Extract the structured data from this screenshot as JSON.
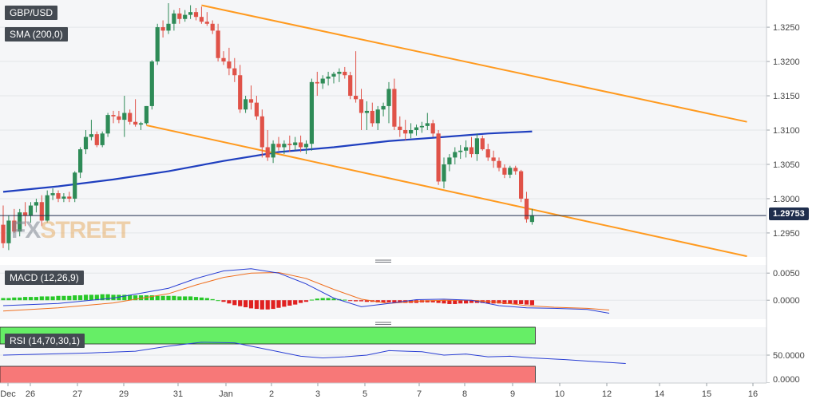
{
  "labels": {
    "symbol": "GBP/USD",
    "sma": "SMA (200,0)",
    "macd": "MACD (12,26,9)",
    "rsi": "RSI (14,70,30,1)",
    "last_price": "1.29753",
    "watermark_fx": "FX",
    "watermark_rest": "STREET"
  },
  "colors": {
    "bull": "#2e8b57",
    "bear": "#e05248",
    "sma": "#1f3fbf",
    "channel": "#ff9a1f",
    "macd_line": "#2a3fd4",
    "signal_line": "#f07020",
    "hist_pos": "#28c828",
    "hist_neg": "#e02020",
    "rsi_line": "#2a3fd4",
    "rsi_overbought": "#66ee66",
    "rsi_oversold": "#f77878"
  },
  "chart_data": [
    {
      "type": "candlestick",
      "title": "GBP/USD",
      "ylim": [
        1.2915,
        1.3285
      ],
      "y_ticks": [
        "1.3250",
        "1.3200",
        "1.3150",
        "1.3100",
        "1.3050",
        "1.3000",
        "1.2950"
      ],
      "x_ticks": [
        "Dec",
        "26",
        "27",
        "29",
        "31",
        "Jan",
        "2",
        "3",
        "5",
        "7",
        "8",
        "9",
        "10",
        "12",
        "14",
        "15",
        "16"
      ],
      "last_price": 1.29753,
      "candles": [
        [
          1.2962,
          1.299,
          1.2928,
          1.2935
        ],
        [
          1.2935,
          1.2975,
          1.2925,
          1.2968
        ],
        [
          1.2968,
          1.2985,
          1.295,
          1.2952
        ],
        [
          1.2952,
          1.2985,
          1.2945,
          1.298
        ],
        [
          1.298,
          1.2995,
          1.296,
          1.2975
        ],
        [
          1.2975,
          1.2995,
          1.2965,
          1.299
        ],
        [
          1.299,
          1.3,
          1.298,
          1.2995
        ],
        [
          1.2995,
          1.3005,
          1.296,
          1.2968
        ],
        [
          1.2968,
          1.3012,
          1.2965,
          1.3005
        ],
        [
          1.3005,
          1.3015,
          1.2998,
          1.3008
        ],
        [
          1.3008,
          1.3012,
          1.2995,
          1.3
        ],
        [
          1.3,
          1.3008,
          1.2995,
          1.3003
        ],
        [
          1.3003,
          1.301,
          1.2995,
          1.3
        ],
        [
          1.3,
          1.304,
          1.2995,
          1.3038
        ],
        [
          1.3038,
          1.3075,
          1.303,
          1.3072
        ],
        [
          1.3072,
          1.31,
          1.3065,
          1.309
        ],
        [
          1.309,
          1.3115,
          1.3085,
          1.3094
        ],
        [
          1.3094,
          1.3098,
          1.3075,
          1.3078
        ],
        [
          1.3078,
          1.3098,
          1.3075,
          1.3095
        ],
        [
          1.3095,
          1.3125,
          1.309,
          1.3122
        ],
        [
          1.3122,
          1.3128,
          1.311,
          1.312
        ],
        [
          1.312,
          1.3128,
          1.311,
          1.3115
        ],
        [
          1.3115,
          1.315,
          1.309,
          1.3125
        ],
        [
          1.3125,
          1.313,
          1.3108,
          1.3112
        ],
        [
          1.3112,
          1.3145,
          1.3105,
          1.3108
        ],
        [
          1.3108,
          1.3112,
          1.31,
          1.311
        ],
        [
          1.311,
          1.3135,
          1.3108,
          1.3135
        ],
        [
          1.3135,
          1.3202,
          1.313,
          1.32
        ],
        [
          1.32,
          1.3255,
          1.3195,
          1.325
        ],
        [
          1.325,
          1.326,
          1.3235,
          1.3245
        ],
        [
          1.3245,
          1.3285,
          1.324,
          1.3255
        ],
        [
          1.3255,
          1.3275,
          1.3245,
          1.327
        ],
        [
          1.327,
          1.3278,
          1.3255,
          1.3262
        ],
        [
          1.3262,
          1.3275,
          1.3258,
          1.3268
        ],
        [
          1.3268,
          1.3282,
          1.3262,
          1.3272
        ],
        [
          1.3272,
          1.3278,
          1.326,
          1.3265
        ],
        [
          1.3265,
          1.328,
          1.3255,
          1.3258
        ],
        [
          1.3258,
          1.3272,
          1.3252,
          1.3255
        ],
        [
          1.3255,
          1.326,
          1.324,
          1.3245
        ],
        [
          1.3245,
          1.3255,
          1.32,
          1.3205
        ],
        [
          1.3205,
          1.3215,
          1.3195,
          1.32
        ],
        [
          1.32,
          1.322,
          1.318,
          1.319
        ],
        [
          1.319,
          1.3205,
          1.317,
          1.318
        ],
        [
          1.318,
          1.3195,
          1.3125,
          1.313
        ],
        [
          1.313,
          1.315,
          1.3125,
          1.3145
        ],
        [
          1.3145,
          1.3165,
          1.313,
          1.314
        ],
        [
          1.314,
          1.315,
          1.3115,
          1.312
        ],
        [
          1.312,
          1.313,
          1.306,
          1.3075
        ],
        [
          1.3075,
          1.31,
          1.3055,
          1.306
        ],
        [
          1.306,
          1.3085,
          1.3052,
          1.308
        ],
        [
          1.308,
          1.309,
          1.307,
          1.3075
        ],
        [
          1.3075,
          1.3085,
          1.3065,
          1.308
        ],
        [
          1.308,
          1.3092,
          1.3068,
          1.3078
        ],
        [
          1.3078,
          1.309,
          1.307,
          1.3082
        ],
        [
          1.3082,
          1.3092,
          1.3068,
          1.3075
        ],
        [
          1.3075,
          1.3085,
          1.3065,
          1.308
        ],
        [
          1.308,
          1.3175,
          1.307,
          1.317
        ],
        [
          1.317,
          1.3185,
          1.315,
          1.3168
        ],
        [
          1.3168,
          1.318,
          1.316,
          1.3175
        ],
        [
          1.3175,
          1.3185,
          1.3165,
          1.3178
        ],
        [
          1.3178,
          1.3185,
          1.3168,
          1.3182
        ],
        [
          1.3182,
          1.319,
          1.317,
          1.3185
        ],
        [
          1.3185,
          1.3192,
          1.3175,
          1.318
        ],
        [
          1.318,
          1.3185,
          1.3145,
          1.315
        ],
        [
          1.315,
          1.3215,
          1.314,
          1.3145
        ],
        [
          1.3145,
          1.316,
          1.31,
          1.3125
        ],
        [
          1.3125,
          1.3142,
          1.31,
          1.3128
        ],
        [
          1.3128,
          1.314,
          1.3105,
          1.311
        ],
        [
          1.311,
          1.3135,
          1.31,
          1.313
        ],
        [
          1.313,
          1.314,
          1.312,
          1.3135
        ],
        [
          1.3135,
          1.317,
          1.311,
          1.316
        ],
        [
          1.316,
          1.3175,
          1.31,
          1.3105
        ],
        [
          1.3105,
          1.312,
          1.309,
          1.31
        ],
        [
          1.31,
          1.3115,
          1.3085,
          1.3095
        ],
        [
          1.3095,
          1.311,
          1.3088,
          1.31
        ],
        [
          1.31,
          1.3108,
          1.3092,
          1.3104
        ],
        [
          1.3104,
          1.3112,
          1.3096,
          1.3106
        ],
        [
          1.3106,
          1.3125,
          1.31,
          1.311
        ],
        [
          1.311,
          1.3115,
          1.309,
          1.3095
        ],
        [
          1.3095,
          1.31,
          1.302,
          1.3025
        ],
        [
          1.3025,
          1.306,
          1.3015,
          1.305
        ],
        [
          1.305,
          1.3065,
          1.304,
          1.306
        ],
        [
          1.306,
          1.3075,
          1.305,
          1.3068
        ],
        [
          1.3068,
          1.3078,
          1.3058,
          1.307
        ],
        [
          1.307,
          1.3085,
          1.306,
          1.3075
        ],
        [
          1.3075,
          1.309,
          1.306,
          1.3065
        ],
        [
          1.3065,
          1.3095,
          1.3055,
          1.3088
        ],
        [
          1.3088,
          1.3092,
          1.307,
          1.3072
        ],
        [
          1.3072,
          1.308,
          1.3055,
          1.306
        ],
        [
          1.306,
          1.307,
          1.3045,
          1.3055
        ],
        [
          1.3055,
          1.306,
          1.304,
          1.3045
        ],
        [
          1.3045,
          1.305,
          1.303,
          1.3035
        ],
        [
          1.3035,
          1.3048,
          1.303,
          1.3045
        ],
        [
          1.3045,
          1.3048,
          1.3035,
          1.304
        ],
        [
          1.304,
          1.3042,
          1.2995,
          1.3
        ],
        [
          1.3,
          1.301,
          1.2965,
          1.297
        ],
        [
          1.2966,
          1.2985,
          1.2962,
          1.2975
        ]
      ],
      "sma_200": [
        [
          0,
          1.301
        ],
        [
          10,
          1.3018
        ],
        [
          20,
          1.3028
        ],
        [
          30,
          1.304
        ],
        [
          40,
          1.3055
        ],
        [
          50,
          1.3068
        ],
        [
          60,
          1.3075
        ],
        [
          70,
          1.3084
        ],
        [
          80,
          1.309
        ],
        [
          88,
          1.3095
        ],
        [
          96,
          1.3098
        ]
      ],
      "channel_upper": [
        [
          36,
          1.3282
        ],
        [
          135,
          1.3112
        ]
      ],
      "channel_lower": [
        [
          26,
          1.3107
        ],
        [
          135,
          1.2916
        ]
      ]
    },
    {
      "type": "bar+line",
      "title": "MACD (12,26,9)",
      "ylim": [
        -0.0035,
        0.0065
      ],
      "y_ticks": [
        "0.0050",
        "0.0000"
      ],
      "macd_line": [
        [
          0,
          -0.001
        ],
        [
          10,
          -0.0006
        ],
        [
          20,
          0.0004
        ],
        [
          30,
          0.0022
        ],
        [
          35,
          0.004
        ],
        [
          40,
          0.0054
        ],
        [
          45,
          0.0058
        ],
        [
          50,
          0.005
        ],
        [
          55,
          0.003
        ],
        [
          60,
          0.0004
        ],
        [
          65,
          -0.0012
        ],
        [
          70,
          -0.0006
        ],
        [
          75,
          0.0001
        ],
        [
          80,
          0.0002
        ],
        [
          85,
          0.0
        ],
        [
          90,
          -0.001
        ],
        [
          95,
          -0.0014
        ],
        [
          100,
          -0.0015
        ],
        [
          106,
          -0.0017
        ],
        [
          110,
          -0.0024
        ]
      ],
      "signal_line": [
        [
          0,
          -0.002
        ],
        [
          10,
          -0.0014
        ],
        [
          20,
          -0.0005
        ],
        [
          30,
          0.0012
        ],
        [
          35,
          0.0028
        ],
        [
          40,
          0.0042
        ],
        [
          45,
          0.005
        ],
        [
          50,
          0.0051
        ],
        [
          55,
          0.004
        ],
        [
          60,
          0.002
        ],
        [
          65,
          0.0002
        ],
        [
          70,
          -0.0006
        ],
        [
          75,
          -0.0002
        ],
        [
          80,
          0.0
        ],
        [
          85,
          0.0
        ],
        [
          90,
          -0.0004
        ],
        [
          95,
          -0.001
        ],
        [
          100,
          -0.0013
        ],
        [
          106,
          -0.0015
        ],
        [
          110,
          -0.0018
        ]
      ],
      "histogram": [
        0.0004,
        0.0004,
        0.0005,
        0.0005,
        0.0006,
        0.0006,
        0.0006,
        0.0007,
        0.0007,
        0.0007,
        0.0008,
        0.0008,
        0.0008,
        0.0009,
        0.0009,
        0.001,
        0.001,
        0.001,
        0.0011,
        0.0011,
        0.001,
        0.001,
        0.001,
        0.001,
        0.0009,
        0.0009,
        0.0009,
        0.0009,
        0.0008,
        0.0008,
        0.0008,
        0.0008,
        0.0007,
        0.0007,
        0.0007,
        0.0006,
        0.0005,
        0.0004,
        0.0002,
        0.0,
        -0.0003,
        -0.0006,
        -0.0009,
        -0.0011,
        -0.0013,
        -0.0015,
        -0.0016,
        -0.0017,
        -0.0017,
        -0.0016,
        -0.0014,
        -0.0012,
        -0.001,
        -0.0008,
        -0.0005,
        -0.0003,
        0.0001,
        0.0003,
        0.0004,
        0.0004,
        0.0003,
        0.0002,
        0.0001,
        -0.0001,
        -0.0002,
        -0.0002,
        -0.0003,
        -0.0003,
        -0.0004,
        -0.0004,
        -0.0004,
        -0.0004,
        -0.0005,
        -0.0005,
        -0.0005,
        -0.0005,
        -0.0004,
        -0.0004,
        -0.0004,
        -0.0005,
        -0.0006,
        -0.0007,
        -0.0007,
        -0.0006,
        -0.0006,
        -0.0005,
        -0.0005,
        -0.0005,
        -0.0006,
        -0.0006,
        -0.0006,
        -0.0007,
        -0.0007,
        -0.0007,
        -0.0007,
        -0.0008,
        -0.0009
      ]
    },
    {
      "type": "line",
      "title": "RSI (14,70,30,1)",
      "ylim": [
        0,
        100
      ],
      "y_ticks": [
        "50.0000",
        "0.0000"
      ],
      "overbought": 70,
      "oversold": 30,
      "rsi": [
        [
          0,
          50
        ],
        [
          8,
          52
        ],
        [
          16,
          54
        ],
        [
          24,
          57
        ],
        [
          30,
          66
        ],
        [
          36,
          73
        ],
        [
          42,
          72
        ],
        [
          48,
          60
        ],
        [
          54,
          48
        ],
        [
          58,
          45
        ],
        [
          62,
          47
        ],
        [
          66,
          50
        ],
        [
          70,
          58
        ],
        [
          76,
          56
        ],
        [
          80,
          50
        ],
        [
          84,
          52
        ],
        [
          88,
          47
        ],
        [
          92,
          48
        ],
        [
          96,
          45
        ],
        [
          102,
          42
        ],
        [
          108,
          38
        ],
        [
          113,
          35
        ]
      ]
    }
  ]
}
